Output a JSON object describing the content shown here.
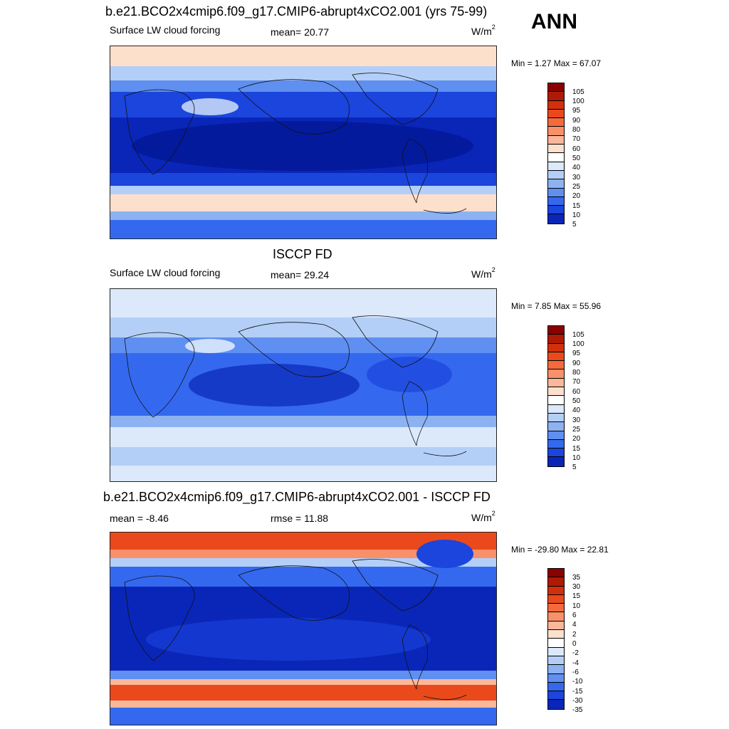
{
  "panels": [
    {
      "title": "b.e21.BCO2x4cmip6.f09_g17.CMIP6-abrupt4xCO2.001 (yrs 75-99)",
      "left_label": "Surface LW cloud forcing",
      "center_label": "mean=  20.77",
      "units": "W/m",
      "units_sup": "2",
      "minmax": "Min =   1.27 Max =  67.07",
      "ticks": [
        "105",
        "100",
        "95",
        "90",
        "80",
        "70",
        "60",
        "50",
        "40",
        "30",
        "25",
        "20",
        "15",
        "10",
        "5"
      ]
    },
    {
      "title": "ISCCP FD",
      "left_label": "Surface LW cloud forcing",
      "center_label": "mean=  29.24",
      "units": "W/m",
      "units_sup": "2",
      "minmax": "Min =   7.85 Max =  55.96",
      "ticks": [
        "105",
        "100",
        "95",
        "90",
        "80",
        "70",
        "60",
        "50",
        "40",
        "30",
        "25",
        "20",
        "15",
        "10",
        "5"
      ]
    },
    {
      "title": "b.e21.BCO2x4cmip6.f09_g17.CMIP6-abrupt4xCO2.001 - ISCCP FD",
      "left_label": "mean =  -8.46",
      "center_label": "rmse =  11.88",
      "units": "W/m",
      "units_sup": "2",
      "minmax": "Min = -29.80 Max =  22.81",
      "ticks": [
        "35",
        "30",
        "15",
        "10",
        "6",
        "4",
        "2",
        "0",
        "-2",
        "-4",
        "-6",
        "-10",
        "-15",
        "-30",
        "-35"
      ]
    }
  ],
  "season": "ANN",
  "colors": {
    "scale": [
      "#8b0000",
      "#b01a05",
      "#d2300c",
      "#ea4a1b",
      "#f46a3d",
      "#f8906a",
      "#fbb79a",
      "#fde0cc",
      "#dbe9fb",
      "#b4cff7",
      "#8db2f2",
      "#5f8ff0",
      "#3469ef",
      "#1b45dd",
      "#0a26b8",
      "#00128a"
    ]
  }
}
